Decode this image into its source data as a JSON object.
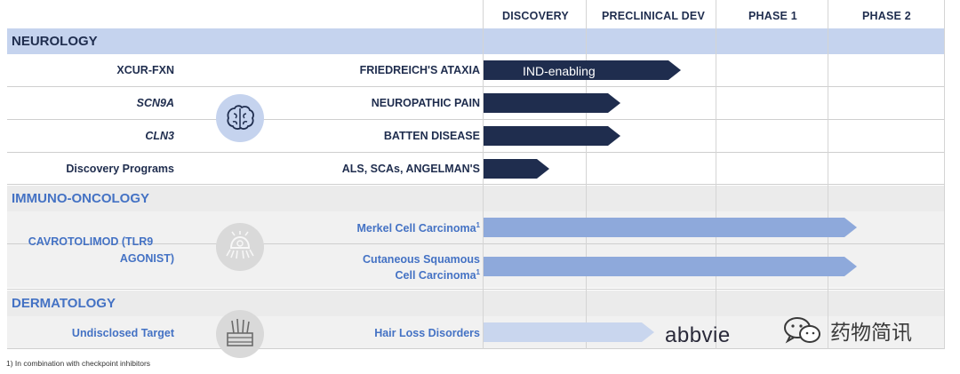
{
  "phases": [
    "DISCOVERY",
    "PRECLINICAL DEV",
    "PHASE 1",
    "PHASE 2"
  ],
  "sections": {
    "neurology": "NEUROLOGY",
    "immuno_oncology": "IMMUNO-ONCOLOGY",
    "dermatology": "DERMATOLOGY"
  },
  "neurology_rows": [
    {
      "asset": "XCUR-FXN",
      "indication": "FRIEDREICH'S ATAXIA",
      "bar_label": "IND-enabling"
    },
    {
      "asset": "SCN9A",
      "indication": "NEUROPATHIC PAIN"
    },
    {
      "asset": "CLN3",
      "indication": "BATTEN DISEASE"
    },
    {
      "asset": "Discovery Programs",
      "indication": "ALS, SCAs, ANGELMAN'S"
    }
  ],
  "immuno": {
    "asset_line1": "CAVROTOLIMOD (TLR9",
    "asset_line2": "AGONIST)",
    "indication1": "Merkel Cell Carcinoma",
    "indication1_sup": "1",
    "indication2_line1": "Cutaneous Squamous",
    "indication2_line2": "Cell Carcinoma",
    "indication2_sup": "1"
  },
  "derm": {
    "asset": "Undisclosed Target",
    "indication": "Hair Loss Disorders",
    "partner": "abbvie"
  },
  "watermark": "药物简讯",
  "footnote": "1) In combination with checkpoint inhibitors",
  "icons": {
    "neurology": "brain-icon",
    "immuno": "cell-icon",
    "derm": "hair-follicle-icon",
    "watermark": "wechat-icon"
  },
  "colors": {
    "navy": "#1f2d4e",
    "light_blue_bar": "#8ea9db",
    "pale_blue_bar": "#c9d6ee",
    "section_blue": "#c5d3ee",
    "text_blue": "#4472c4"
  }
}
